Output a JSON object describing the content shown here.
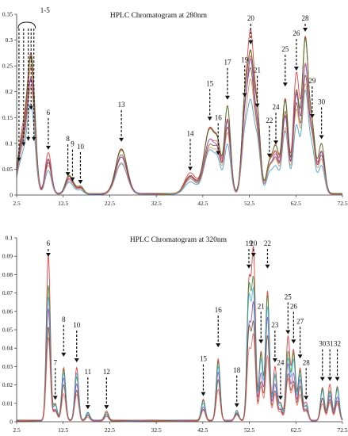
{
  "chart_data": [
    {
      "type": "line",
      "title": "HPLC Chromatogram at 280nm",
      "xlim": [
        2.5,
        72.5
      ],
      "ylim": [
        0,
        0.35
      ],
      "xticks": [
        "2.5",
        "12.5",
        "22.5",
        "32.5",
        "42.5",
        "52.5",
        "62.5",
        "72.5"
      ],
      "yticks": [
        "0",
        "0.05",
        "0.1",
        "0.15",
        "0.2",
        "0.25",
        "0.3",
        "0.35"
      ],
      "grid": false,
      "bracket_label": "1-5",
      "peaks": [
        {
          "label": "6",
          "x": 9.3,
          "y": 0.08
        },
        {
          "label": "8",
          "x": 13.5,
          "y": 0.03
        },
        {
          "label": "9",
          "x": 14.5,
          "y": 0.02
        },
        {
          "label": "10",
          "x": 16.2,
          "y": 0.015
        },
        {
          "label": "13",
          "x": 25.0,
          "y": 0.095
        },
        {
          "label": "14",
          "x": 39.8,
          "y": 0.04
        },
        {
          "label": "15",
          "x": 44.0,
          "y": 0.135
        },
        {
          "label": "16",
          "x": 45.8,
          "y": 0.07
        },
        {
          "label": "17",
          "x": 47.8,
          "y": 0.175
        },
        {
          "label": "19",
          "x": 51.5,
          "y": 0.18
        },
        {
          "label": "20",
          "x": 52.8,
          "y": 0.28
        },
        {
          "label": "21",
          "x": 54.2,
          "y": 0.16
        },
        {
          "label": "22",
          "x": 56.8,
          "y": 0.065
        },
        {
          "label": "24",
          "x": 58.2,
          "y": 0.09
        },
        {
          "label": "25",
          "x": 60.2,
          "y": 0.2
        },
        {
          "label": "26",
          "x": 62.6,
          "y": 0.23
        },
        {
          "label": "28",
          "x": 64.5,
          "y": 0.31
        },
        {
          "label": "29",
          "x": 66.0,
          "y": 0.14
        },
        {
          "label": "30",
          "x": 68.0,
          "y": 0.1
        }
      ],
      "early_peaks": [
        {
          "x": 3.0,
          "y": 0.06
        },
        {
          "x": 4.0,
          "y": 0.09
        },
        {
          "x": 5.0,
          "y": 0.1
        },
        {
          "x": 5.6,
          "y": 0.16
        },
        {
          "x": 6.2,
          "y": 0.1
        }
      ],
      "series": [
        {
          "color": "#e3201b",
          "scale": 1.0
        },
        {
          "color": "#b41c17",
          "scale": 0.94
        },
        {
          "color": "#f35a4e",
          "scale": 0.86
        },
        {
          "color": "#2a8a2a",
          "scale": 0.96
        },
        {
          "color": "#7a3b1a",
          "scale": 0.8
        },
        {
          "color": "#8a3bc4",
          "scale": 0.82
        },
        {
          "color": "#2a8fd4",
          "scale": 0.62
        },
        {
          "color": "#d58a4a",
          "scale": 0.72
        }
      ]
    },
    {
      "type": "line",
      "title": "HPLC Chromatogram at 320nm",
      "xlim": [
        2.5,
        72.5
      ],
      "ylim": [
        0,
        0.1
      ],
      "xticks": [
        "2.5",
        "12.5",
        "22.5",
        "32.5",
        "42.5",
        "52.5",
        "62.5",
        "72.5"
      ],
      "yticks": [
        "0",
        "0.01",
        "0.02",
        "0.03",
        "0.04",
        "0.05",
        "0.06",
        "0.07",
        "0.08",
        "0.09",
        "0.1"
      ],
      "grid": false,
      "peaks": [
        {
          "label": "6",
          "x": 9.3,
          "y": 0.09
        },
        {
          "label": "7",
          "x": 10.8,
          "y": 0.01
        },
        {
          "label": "8",
          "x": 12.6,
          "y": 0.033
        },
        {
          "label": "10",
          "x": 15.4,
          "y": 0.03
        },
        {
          "label": "11",
          "x": 17.8,
          "y": 0.005
        },
        {
          "label": "12",
          "x": 21.8,
          "y": 0.005
        },
        {
          "label": "15",
          "x": 42.6,
          "y": 0.012
        },
        {
          "label": "16",
          "x": 45.8,
          "y": 0.038
        },
        {
          "label": "18",
          "x": 49.8,
          "y": 0.006
        },
        {
          "label": "19",
          "x": 52.4,
          "y": 0.08
        },
        {
          "label": "20",
          "x": 53.4,
          "y": 0.09
        },
        {
          "label": "21",
          "x": 55.0,
          "y": 0.04
        },
        {
          "label": "22",
          "x": 56.4,
          "y": 0.08
        },
        {
          "label": "23",
          "x": 58.0,
          "y": 0.03
        },
        {
          "label": "24",
          "x": 59.2,
          "y": 0.01
        },
        {
          "label": "25",
          "x": 60.8,
          "y": 0.045
        },
        {
          "label": "26",
          "x": 62.0,
          "y": 0.04
        },
        {
          "label": "27",
          "x": 63.4,
          "y": 0.032
        },
        {
          "label": "28",
          "x": 64.7,
          "y": 0.01
        },
        {
          "label": "30",
          "x": 68.2,
          "y": 0.02
        },
        {
          "label": "31",
          "x": 69.8,
          "y": 0.02
        },
        {
          "label": "32",
          "x": 71.4,
          "y": 0.02
        }
      ],
      "series": [
        {
          "color": "#e3201b",
          "scale": 1.0
        },
        {
          "color": "#2a8a2a",
          "scale": 0.9
        },
        {
          "color": "#8a3bc4",
          "scale": 0.7
        },
        {
          "color": "#2ab0e0",
          "scale": 0.85
        },
        {
          "color": "#7a3b1a",
          "scale": 0.6
        },
        {
          "color": "#f35a4e",
          "scale": 0.5
        }
      ]
    }
  ]
}
